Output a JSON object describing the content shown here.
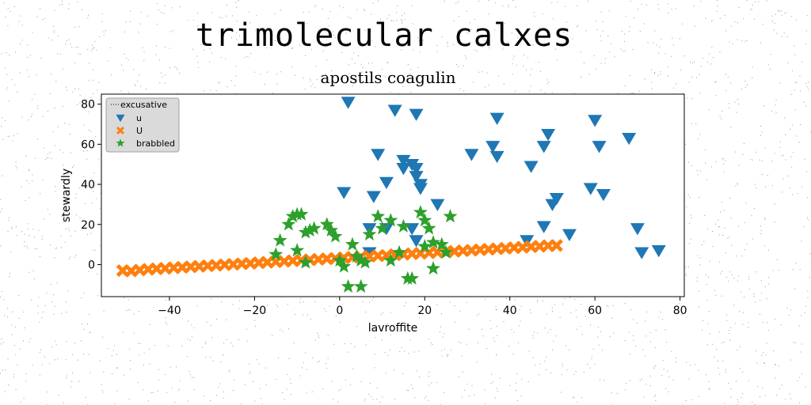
{
  "chart_data": {
    "type": "scatter",
    "title": "trimolecular calxes",
    "subtitle": "apostils coagulin",
    "xlabel": "lavroffite",
    "ylabel": "stewardly",
    "xlim": [
      -56,
      81
    ],
    "ylim": [
      -16,
      85
    ],
    "xticks": [
      -40,
      -20,
      0,
      20,
      40,
      60,
      80
    ],
    "yticks": [
      0,
      20,
      40,
      60,
      80
    ],
    "xtick_labels": [
      "−40",
      "−20",
      "0",
      "20",
      "40",
      "60",
      "80"
    ],
    "ytick_labels": [
      "0",
      "20",
      "40",
      "60",
      "80"
    ],
    "grid": false,
    "legend": {
      "placement": "top-left",
      "title": "excusative",
      "entries": [
        "u",
        "U",
        "brabbled"
      ]
    },
    "series": [
      {
        "name": "u",
        "marker": "triangle-down",
        "color": "#1f77b4",
        "points": [
          [
            2,
            81
          ],
          [
            13,
            77
          ],
          [
            18,
            75
          ],
          [
            37,
            73
          ],
          [
            60,
            72
          ],
          [
            49,
            65
          ],
          [
            68,
            63
          ],
          [
            61,
            59
          ],
          [
            48,
            59
          ],
          [
            36,
            59
          ],
          [
            31,
            55
          ],
          [
            37,
            54
          ],
          [
            9,
            55
          ],
          [
            15,
            52
          ],
          [
            17,
            50
          ],
          [
            15,
            48
          ],
          [
            18,
            48
          ],
          [
            18,
            44
          ],
          [
            19,
            40
          ],
          [
            19,
            38
          ],
          [
            11,
            41
          ],
          [
            1,
            36
          ],
          [
            8,
            34
          ],
          [
            59,
            38
          ],
          [
            62,
            35
          ],
          [
            51,
            33
          ],
          [
            50,
            30
          ],
          [
            23,
            30
          ],
          [
            45,
            49
          ],
          [
            7,
            18
          ],
          [
            17,
            18
          ],
          [
            48,
            19
          ],
          [
            11,
            18
          ],
          [
            70,
            18
          ],
          [
            44,
            12
          ],
          [
            54,
            15
          ],
          [
            18,
            12
          ],
          [
            71,
            6
          ],
          [
            75,
            7
          ],
          [
            7,
            6
          ]
        ]
      },
      {
        "name": "U",
        "marker": "x-filled",
        "color": "#ff7f0e",
        "points": [
          [
            -51,
            -3
          ],
          [
            -49,
            -3.2
          ],
          [
            -47,
            -2.7
          ],
          [
            -45,
            -2.4
          ],
          [
            -43,
            -2.1
          ],
          [
            -41,
            -1.9
          ],
          [
            -39,
            -1.6
          ],
          [
            -37,
            -1.4
          ],
          [
            -35,
            -1.1
          ],
          [
            -33,
            -0.9
          ],
          [
            -31,
            -0.6
          ],
          [
            -29,
            -0.4
          ],
          [
            -27,
            -0.1
          ],
          [
            -25,
            0.1
          ],
          [
            -23,
            0.4
          ],
          [
            -21,
            0.6
          ],
          [
            -19,
            0.9
          ],
          [
            -17,
            1.1
          ],
          [
            -15,
            1.4
          ],
          [
            -13,
            1.6
          ],
          [
            -11,
            1.9
          ],
          [
            -9,
            2.1
          ],
          [
            -7,
            2.4
          ],
          [
            -5,
            2.6
          ],
          [
            -3,
            2.9
          ],
          [
            -1,
            3.1
          ],
          [
            1,
            3.4
          ],
          [
            3,
            3.6
          ],
          [
            5,
            3.9
          ],
          [
            7,
            4.1
          ],
          [
            9,
            4.4
          ],
          [
            11,
            4.6
          ],
          [
            13,
            4.9
          ],
          [
            15,
            5.1
          ],
          [
            17,
            5.4
          ],
          [
            19,
            5.6
          ],
          [
            21,
            5.9
          ],
          [
            23,
            6.1
          ],
          [
            25,
            6.4
          ],
          [
            27,
            6.6
          ],
          [
            29,
            6.9
          ],
          [
            31,
            7.1
          ],
          [
            33,
            7.4
          ],
          [
            35,
            7.6
          ],
          [
            37,
            7.9
          ],
          [
            39,
            8.1
          ],
          [
            41,
            8.4
          ],
          [
            43,
            8.6
          ],
          [
            45,
            8.9
          ],
          [
            47,
            9.1
          ],
          [
            49,
            9.4
          ],
          [
            51,
            9.5
          ]
        ]
      },
      {
        "name": "brabbled",
        "marker": "star",
        "color": "#2ca02c",
        "points": [
          [
            -11,
            24
          ],
          [
            -10,
            25
          ],
          [
            -9,
            25
          ],
          [
            -12,
            20
          ],
          [
            -7,
            17
          ],
          [
            -6,
            18
          ],
          [
            -3,
            20
          ],
          [
            -2,
            17
          ],
          [
            -1,
            14
          ],
          [
            -14,
            12
          ],
          [
            -8,
            16
          ],
          [
            -10,
            7
          ],
          [
            -15,
            5
          ],
          [
            -8,
            1
          ],
          [
            0,
            2
          ],
          [
            1,
            -1
          ],
          [
            3,
            10
          ],
          [
            4,
            4
          ],
          [
            5,
            2
          ],
          [
            6,
            1
          ],
          [
            7,
            15
          ],
          [
            9,
            24
          ],
          [
            10,
            18
          ],
          [
            12,
            22
          ],
          [
            14,
            6
          ],
          [
            15,
            19
          ],
          [
            16,
            -7
          ],
          [
            17,
            -7
          ],
          [
            19,
            26
          ],
          [
            20,
            22
          ],
          [
            21,
            18
          ],
          [
            20,
            9
          ],
          [
            22,
            11
          ],
          [
            24,
            10
          ],
          [
            25,
            6
          ],
          [
            26,
            24
          ],
          [
            22,
            -2
          ],
          [
            12,
            2
          ],
          [
            2,
            -11
          ],
          [
            5,
            -11
          ]
        ]
      }
    ]
  }
}
